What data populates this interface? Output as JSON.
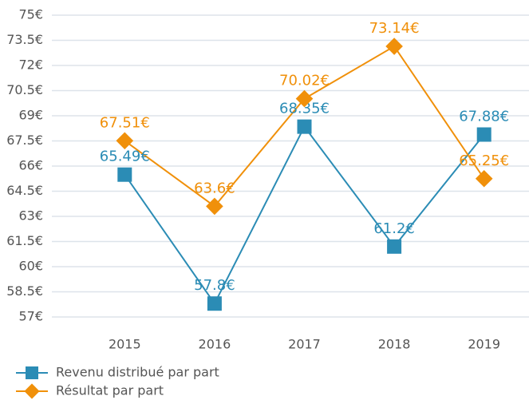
{
  "chart_data": {
    "type": "line",
    "categories": [
      "2015",
      "2016",
      "2017",
      "2018",
      "2019"
    ],
    "series": [
      {
        "name": "Revenu distribué par part",
        "color": "#2b8cb5",
        "marker": "square",
        "values": [
          65.49,
          57.8,
          68.35,
          61.2,
          67.88
        ],
        "value_labels": [
          "65.49€",
          "57.8€",
          "68.35€",
          "61.2€",
          "67.88€"
        ]
      },
      {
        "name": "Résultat par part",
        "color": "#f0900a",
        "marker": "diamond",
        "values": [
          67.51,
          63.6,
          70.02,
          73.14,
          65.25
        ],
        "value_labels": [
          "67.51€",
          "63.6€",
          "70.02€",
          "73.14€",
          "65.25€"
        ]
      }
    ],
    "ylim": [
      57,
      75
    ],
    "yticks": [
      {
        "value": 57,
        "label": "57€"
      },
      {
        "value": 58.5,
        "label": "58.5€"
      },
      {
        "value": 60,
        "label": "60€"
      },
      {
        "value": 61.5,
        "label": "61.5€"
      },
      {
        "value": 63,
        "label": "63€"
      },
      {
        "value": 64.5,
        "label": "64.5€"
      },
      {
        "value": 66,
        "label": "66€"
      },
      {
        "value": 67.5,
        "label": "67.5€"
      },
      {
        "value": 69,
        "label": "69€"
      },
      {
        "value": 70.5,
        "label": "70.5€"
      },
      {
        "value": 72,
        "label": "72€"
      },
      {
        "value": 73.5,
        "label": "73.5€"
      },
      {
        "value": 75,
        "label": "75€"
      }
    ],
    "grid": true,
    "legend": "bottom-left"
  }
}
